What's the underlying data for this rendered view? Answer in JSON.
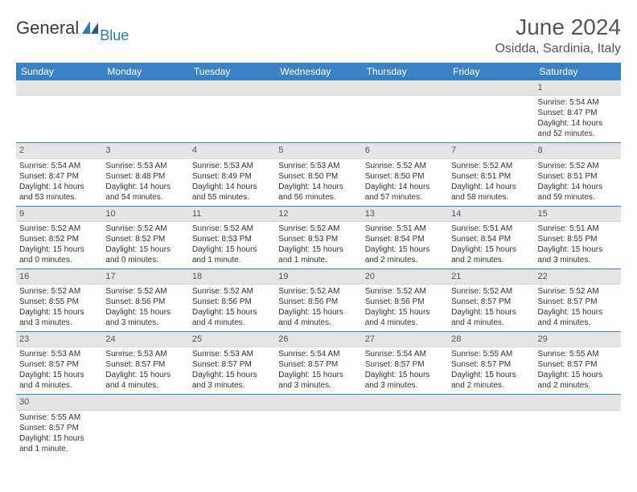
{
  "brand": {
    "general": "General",
    "blue": "Blue"
  },
  "title": "June 2024",
  "location": "Osidda, Sardinia, Italy",
  "colors": {
    "header_bg": "#3b82c4",
    "header_text": "#ffffff",
    "daynum_bg": "#e5e5e5",
    "row_border": "#3b82c4",
    "text": "#333333",
    "brand_blue": "#2a7ab8"
  },
  "fonts": {
    "body_pt": 10,
    "title_pt": 28,
    "location_pt": 16,
    "dayhead_pt": 12
  },
  "layout": {
    "columns": 7,
    "rows": 6,
    "first_day_index": 6
  },
  "weekdays": [
    "Sunday",
    "Monday",
    "Tuesday",
    "Wednesday",
    "Thursday",
    "Friday",
    "Saturday"
  ],
  "days": [
    {
      "n": 1,
      "sunrise": "5:54 AM",
      "sunset": "8:47 PM",
      "daylight": "14 hours and 52 minutes."
    },
    {
      "n": 2,
      "sunrise": "5:54 AM",
      "sunset": "8:47 PM",
      "daylight": "14 hours and 53 minutes."
    },
    {
      "n": 3,
      "sunrise": "5:53 AM",
      "sunset": "8:48 PM",
      "daylight": "14 hours and 54 minutes."
    },
    {
      "n": 4,
      "sunrise": "5:53 AM",
      "sunset": "8:49 PM",
      "daylight": "14 hours and 55 minutes."
    },
    {
      "n": 5,
      "sunrise": "5:53 AM",
      "sunset": "8:50 PM",
      "daylight": "14 hours and 56 minutes."
    },
    {
      "n": 6,
      "sunrise": "5:52 AM",
      "sunset": "8:50 PM",
      "daylight": "14 hours and 57 minutes."
    },
    {
      "n": 7,
      "sunrise": "5:52 AM",
      "sunset": "8:51 PM",
      "daylight": "14 hours and 58 minutes."
    },
    {
      "n": 8,
      "sunrise": "5:52 AM",
      "sunset": "8:51 PM",
      "daylight": "14 hours and 59 minutes."
    },
    {
      "n": 9,
      "sunrise": "5:52 AM",
      "sunset": "8:52 PM",
      "daylight": "15 hours and 0 minutes."
    },
    {
      "n": 10,
      "sunrise": "5:52 AM",
      "sunset": "8:52 PM",
      "daylight": "15 hours and 0 minutes."
    },
    {
      "n": 11,
      "sunrise": "5:52 AM",
      "sunset": "8:53 PM",
      "daylight": "15 hours and 1 minute."
    },
    {
      "n": 12,
      "sunrise": "5:52 AM",
      "sunset": "8:53 PM",
      "daylight": "15 hours and 1 minute."
    },
    {
      "n": 13,
      "sunrise": "5:51 AM",
      "sunset": "8:54 PM",
      "daylight": "15 hours and 2 minutes."
    },
    {
      "n": 14,
      "sunrise": "5:51 AM",
      "sunset": "8:54 PM",
      "daylight": "15 hours and 2 minutes."
    },
    {
      "n": 15,
      "sunrise": "5:51 AM",
      "sunset": "8:55 PM",
      "daylight": "15 hours and 3 minutes."
    },
    {
      "n": 16,
      "sunrise": "5:52 AM",
      "sunset": "8:55 PM",
      "daylight": "15 hours and 3 minutes."
    },
    {
      "n": 17,
      "sunrise": "5:52 AM",
      "sunset": "8:56 PM",
      "daylight": "15 hours and 3 minutes."
    },
    {
      "n": 18,
      "sunrise": "5:52 AM",
      "sunset": "8:56 PM",
      "daylight": "15 hours and 4 minutes."
    },
    {
      "n": 19,
      "sunrise": "5:52 AM",
      "sunset": "8:56 PM",
      "daylight": "15 hours and 4 minutes."
    },
    {
      "n": 20,
      "sunrise": "5:52 AM",
      "sunset": "8:56 PM",
      "daylight": "15 hours and 4 minutes."
    },
    {
      "n": 21,
      "sunrise": "5:52 AM",
      "sunset": "8:57 PM",
      "daylight": "15 hours and 4 minutes."
    },
    {
      "n": 22,
      "sunrise": "5:52 AM",
      "sunset": "8:57 PM",
      "daylight": "15 hours and 4 minutes."
    },
    {
      "n": 23,
      "sunrise": "5:53 AM",
      "sunset": "8:57 PM",
      "daylight": "15 hours and 4 minutes."
    },
    {
      "n": 24,
      "sunrise": "5:53 AM",
      "sunset": "8:57 PM",
      "daylight": "15 hours and 4 minutes."
    },
    {
      "n": 25,
      "sunrise": "5:53 AM",
      "sunset": "8:57 PM",
      "daylight": "15 hours and 3 minutes."
    },
    {
      "n": 26,
      "sunrise": "5:54 AM",
      "sunset": "8:57 PM",
      "daylight": "15 hours and 3 minutes."
    },
    {
      "n": 27,
      "sunrise": "5:54 AM",
      "sunset": "8:57 PM",
      "daylight": "15 hours and 3 minutes."
    },
    {
      "n": 28,
      "sunrise": "5:55 AM",
      "sunset": "8:57 PM",
      "daylight": "15 hours and 2 minutes."
    },
    {
      "n": 29,
      "sunrise": "5:55 AM",
      "sunset": "8:57 PM",
      "daylight": "15 hours and 2 minutes."
    },
    {
      "n": 30,
      "sunrise": "5:55 AM",
      "sunset": "8:57 PM",
      "daylight": "15 hours and 1 minute."
    }
  ],
  "labels": {
    "sunrise": "Sunrise:",
    "sunset": "Sunset:",
    "daylight": "Daylight:"
  }
}
